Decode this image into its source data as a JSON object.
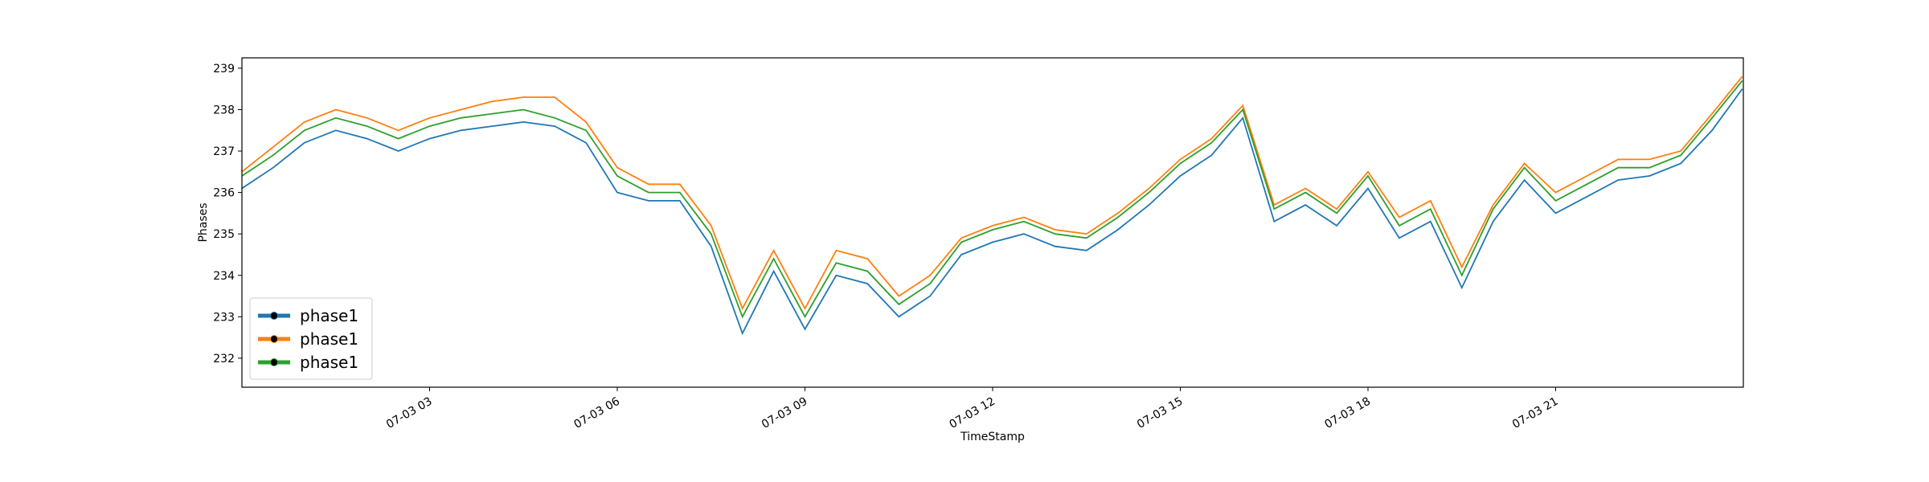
{
  "chart_data": {
    "type": "line",
    "xlabel": "TimeStamp",
    "ylabel": "Phases",
    "xlim": [
      "07-03 00:00",
      "07-04 00:00"
    ],
    "xticks": [
      "07-03 03",
      "07-03 06",
      "07-03 09",
      "07-03 12",
      "07-03 15",
      "07-03 18",
      "07-03 21"
    ],
    "ylim": [
      231.3,
      239.25
    ],
    "yticks": [
      232,
      233,
      234,
      235,
      236,
      237,
      238,
      239
    ],
    "legend": "lower left",
    "x": [
      "07-03 00:00",
      "07-03 00:30",
      "07-03 01:00",
      "07-03 01:30",
      "07-03 02:00",
      "07-03 02:30",
      "07-03 03:00",
      "07-03 03:30",
      "07-03 04:00",
      "07-03 04:30",
      "07-03 05:00",
      "07-03 05:30",
      "07-03 06:00",
      "07-03 06:30",
      "07-03 07:00",
      "07-03 07:30",
      "07-03 08:00",
      "07-03 08:30",
      "07-03 09:00",
      "07-03 09:30",
      "07-03 10:00",
      "07-03 10:30",
      "07-03 11:00",
      "07-03 11:30",
      "07-03 12:00",
      "07-03 12:30",
      "07-03 13:00",
      "07-03 13:30",
      "07-03 14:00",
      "07-03 14:30",
      "07-03 15:00",
      "07-03 15:30",
      "07-03 16:00",
      "07-03 16:30",
      "07-03 17:00",
      "07-03 17:30",
      "07-03 18:00",
      "07-03 18:30",
      "07-03 19:00",
      "07-03 19:30",
      "07-03 20:00",
      "07-03 20:30",
      "07-03 21:00",
      "07-03 21:30",
      "07-03 22:00",
      "07-03 22:30",
      "07-03 23:00",
      "07-03 23:30",
      "07-03 23:59"
    ],
    "series": [
      {
        "name": "phase1",
        "color": "#1f77b4",
        "values": [
          236.1,
          236.6,
          237.2,
          237.5,
          237.3,
          237.0,
          237.3,
          237.5,
          237.6,
          237.7,
          237.6,
          237.2,
          236.0,
          235.8,
          235.8,
          234.7,
          232.6,
          234.1,
          232.7,
          234.0,
          233.8,
          233.0,
          233.5,
          234.5,
          234.8,
          235.0,
          234.7,
          234.6,
          235.1,
          235.7,
          236.4,
          236.9,
          237.8,
          235.3,
          235.7,
          235.2,
          236.1,
          234.9,
          235.3,
          233.7,
          235.3,
          236.3,
          235.5,
          235.9,
          236.3,
          236.4,
          236.7,
          237.5,
          238.5
        ]
      },
      {
        "name": "phase1",
        "color": "#ff7f0e",
        "values": [
          236.5,
          237.1,
          237.7,
          238.0,
          237.8,
          237.5,
          237.8,
          238.0,
          238.2,
          238.3,
          238.3,
          237.7,
          236.6,
          236.2,
          236.2,
          235.2,
          233.2,
          234.6,
          233.2,
          234.6,
          234.4,
          233.5,
          234.0,
          234.9,
          235.2,
          235.4,
          235.1,
          235.0,
          235.5,
          236.1,
          236.8,
          237.3,
          238.1,
          235.7,
          236.1,
          235.6,
          236.5,
          235.4,
          235.8,
          234.2,
          235.7,
          236.7,
          236.0,
          236.4,
          236.8,
          236.8,
          237.0,
          237.9,
          238.8
        ]
      },
      {
        "name": "phase1",
        "color": "#2ca02c",
        "values": [
          236.4,
          236.9,
          237.5,
          237.8,
          237.6,
          237.3,
          237.6,
          237.8,
          237.9,
          238.0,
          237.8,
          237.5,
          236.4,
          236.0,
          236.0,
          235.0,
          233.0,
          234.4,
          233.0,
          234.3,
          234.1,
          233.3,
          233.8,
          234.8,
          235.1,
          235.3,
          235.0,
          234.9,
          235.4,
          236.0,
          236.7,
          237.2,
          238.0,
          235.6,
          236.0,
          235.5,
          236.4,
          235.2,
          235.6,
          234.0,
          235.6,
          236.6,
          235.8,
          236.2,
          236.6,
          236.6,
          236.9,
          237.8,
          238.7
        ]
      }
    ]
  }
}
